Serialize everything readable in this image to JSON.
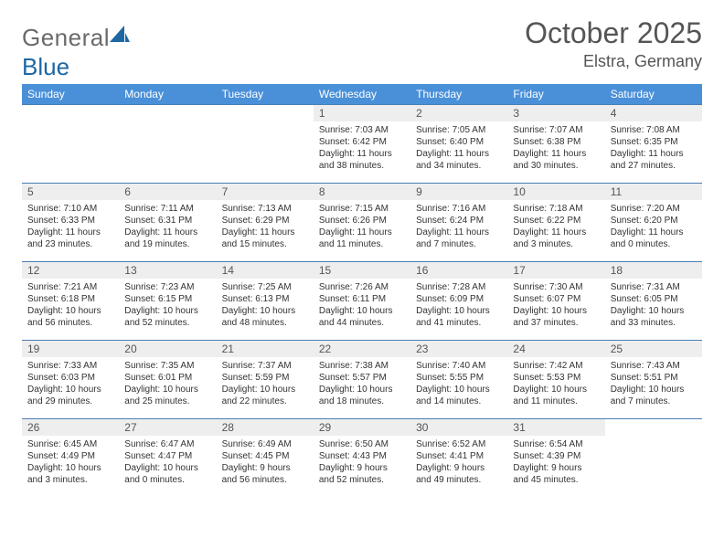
{
  "brand": {
    "word1": "General",
    "word2": "Blue"
  },
  "title": "October 2025",
  "location": "Elstra, Germany",
  "colors": {
    "header_bg": "#4a90d9",
    "header_text": "#ffffff",
    "row_border": "#4a7fb5",
    "daynum_bg": "#eeeeee",
    "text": "#333333",
    "title_color": "#555555",
    "logo_gray": "#6a6a6a",
    "logo_blue": "#1d67a3"
  },
  "weekdays": [
    "Sunday",
    "Monday",
    "Tuesday",
    "Wednesday",
    "Thursday",
    "Friday",
    "Saturday"
  ],
  "grid": {
    "first_weekday_index": 3,
    "days_in_month": 31
  },
  "days": {
    "1": {
      "sunrise": "7:03 AM",
      "sunset": "6:42 PM",
      "daylight": "11 hours and 38 minutes."
    },
    "2": {
      "sunrise": "7:05 AM",
      "sunset": "6:40 PM",
      "daylight": "11 hours and 34 minutes."
    },
    "3": {
      "sunrise": "7:07 AM",
      "sunset": "6:38 PM",
      "daylight": "11 hours and 30 minutes."
    },
    "4": {
      "sunrise": "7:08 AM",
      "sunset": "6:35 PM",
      "daylight": "11 hours and 27 minutes."
    },
    "5": {
      "sunrise": "7:10 AM",
      "sunset": "6:33 PM",
      "daylight": "11 hours and 23 minutes."
    },
    "6": {
      "sunrise": "7:11 AM",
      "sunset": "6:31 PM",
      "daylight": "11 hours and 19 minutes."
    },
    "7": {
      "sunrise": "7:13 AM",
      "sunset": "6:29 PM",
      "daylight": "11 hours and 15 minutes."
    },
    "8": {
      "sunrise": "7:15 AM",
      "sunset": "6:26 PM",
      "daylight": "11 hours and 11 minutes."
    },
    "9": {
      "sunrise": "7:16 AM",
      "sunset": "6:24 PM",
      "daylight": "11 hours and 7 minutes."
    },
    "10": {
      "sunrise": "7:18 AM",
      "sunset": "6:22 PM",
      "daylight": "11 hours and 3 minutes."
    },
    "11": {
      "sunrise": "7:20 AM",
      "sunset": "6:20 PM",
      "daylight": "11 hours and 0 minutes."
    },
    "12": {
      "sunrise": "7:21 AM",
      "sunset": "6:18 PM",
      "daylight": "10 hours and 56 minutes."
    },
    "13": {
      "sunrise": "7:23 AM",
      "sunset": "6:15 PM",
      "daylight": "10 hours and 52 minutes."
    },
    "14": {
      "sunrise": "7:25 AM",
      "sunset": "6:13 PM",
      "daylight": "10 hours and 48 minutes."
    },
    "15": {
      "sunrise": "7:26 AM",
      "sunset": "6:11 PM",
      "daylight": "10 hours and 44 minutes."
    },
    "16": {
      "sunrise": "7:28 AM",
      "sunset": "6:09 PM",
      "daylight": "10 hours and 41 minutes."
    },
    "17": {
      "sunrise": "7:30 AM",
      "sunset": "6:07 PM",
      "daylight": "10 hours and 37 minutes."
    },
    "18": {
      "sunrise": "7:31 AM",
      "sunset": "6:05 PM",
      "daylight": "10 hours and 33 minutes."
    },
    "19": {
      "sunrise": "7:33 AM",
      "sunset": "6:03 PM",
      "daylight": "10 hours and 29 minutes."
    },
    "20": {
      "sunrise": "7:35 AM",
      "sunset": "6:01 PM",
      "daylight": "10 hours and 25 minutes."
    },
    "21": {
      "sunrise": "7:37 AM",
      "sunset": "5:59 PM",
      "daylight": "10 hours and 22 minutes."
    },
    "22": {
      "sunrise": "7:38 AM",
      "sunset": "5:57 PM",
      "daylight": "10 hours and 18 minutes."
    },
    "23": {
      "sunrise": "7:40 AM",
      "sunset": "5:55 PM",
      "daylight": "10 hours and 14 minutes."
    },
    "24": {
      "sunrise": "7:42 AM",
      "sunset": "5:53 PM",
      "daylight": "10 hours and 11 minutes."
    },
    "25": {
      "sunrise": "7:43 AM",
      "sunset": "5:51 PM",
      "daylight": "10 hours and 7 minutes."
    },
    "26": {
      "sunrise": "6:45 AM",
      "sunset": "4:49 PM",
      "daylight": "10 hours and 3 minutes."
    },
    "27": {
      "sunrise": "6:47 AM",
      "sunset": "4:47 PM",
      "daylight": "10 hours and 0 minutes."
    },
    "28": {
      "sunrise": "6:49 AM",
      "sunset": "4:45 PM",
      "daylight": "9 hours and 56 minutes."
    },
    "29": {
      "sunrise": "6:50 AM",
      "sunset": "4:43 PM",
      "daylight": "9 hours and 52 minutes."
    },
    "30": {
      "sunrise": "6:52 AM",
      "sunset": "4:41 PM",
      "daylight": "9 hours and 49 minutes."
    },
    "31": {
      "sunrise": "6:54 AM",
      "sunset": "4:39 PM",
      "daylight": "9 hours and 45 minutes."
    }
  },
  "labels": {
    "sunrise": "Sunrise:",
    "sunset": "Sunset:",
    "daylight": "Daylight:"
  }
}
